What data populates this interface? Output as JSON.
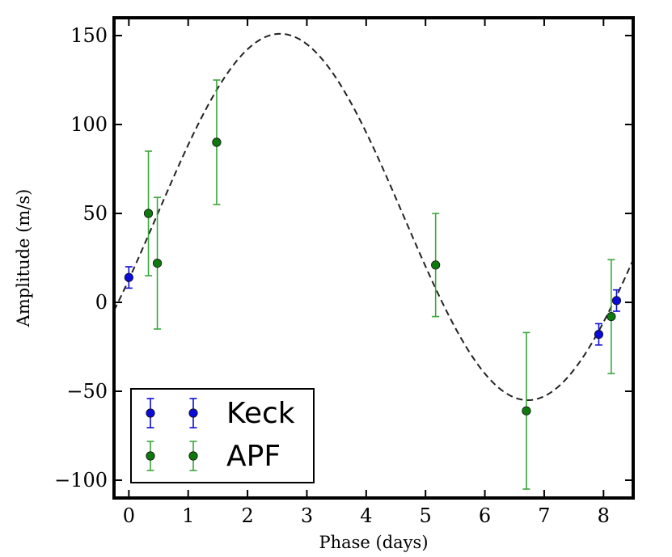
{
  "chart_data": {
    "type": "scatter",
    "title": "",
    "xlabel": "Phase (days)",
    "ylabel": "Amplitude (m/s)",
    "xlim": [
      -0.25,
      8.5
    ],
    "ylim": [
      -110,
      160
    ],
    "xticks": [
      0,
      1,
      2,
      3,
      4,
      5,
      6,
      7,
      8
    ],
    "yticks": [
      -100,
      -50,
      0,
      50,
      100,
      150
    ],
    "ytick_labels": [
      "−100",
      "−50",
      "0",
      "50",
      "100",
      "150"
    ],
    "legend_position": "lower-left",
    "grid": false,
    "model": {
      "name": "Keplerian fit",
      "style": "dashed",
      "color": "#222222",
      "offset": 48,
      "amplitude": 103,
      "period_days": 8.35,
      "phase_of_peak_days": 2.55
    },
    "series": [
      {
        "name": "Keck",
        "color": "#0b0bd8",
        "points": [
          {
            "x": 0.0,
            "y": 14,
            "err": 6
          },
          {
            "x": 7.92,
            "y": -18,
            "err": 6
          },
          {
            "x": 8.22,
            "y": 1,
            "err": 6
          }
        ]
      },
      {
        "name": "APF",
        "color": "#0e7a0e",
        "errcolor": "#3aa63a",
        "points": [
          {
            "x": 0.33,
            "y": 50,
            "err": 35
          },
          {
            "x": 0.48,
            "y": 22,
            "err": 37
          },
          {
            "x": 1.48,
            "y": 90,
            "err": 35
          },
          {
            "x": 5.17,
            "y": 21,
            "err": 29
          },
          {
            "x": 6.7,
            "y": -61,
            "err": 44
          },
          {
            "x": 8.13,
            "y": -8,
            "err": 32
          }
        ]
      }
    ]
  }
}
